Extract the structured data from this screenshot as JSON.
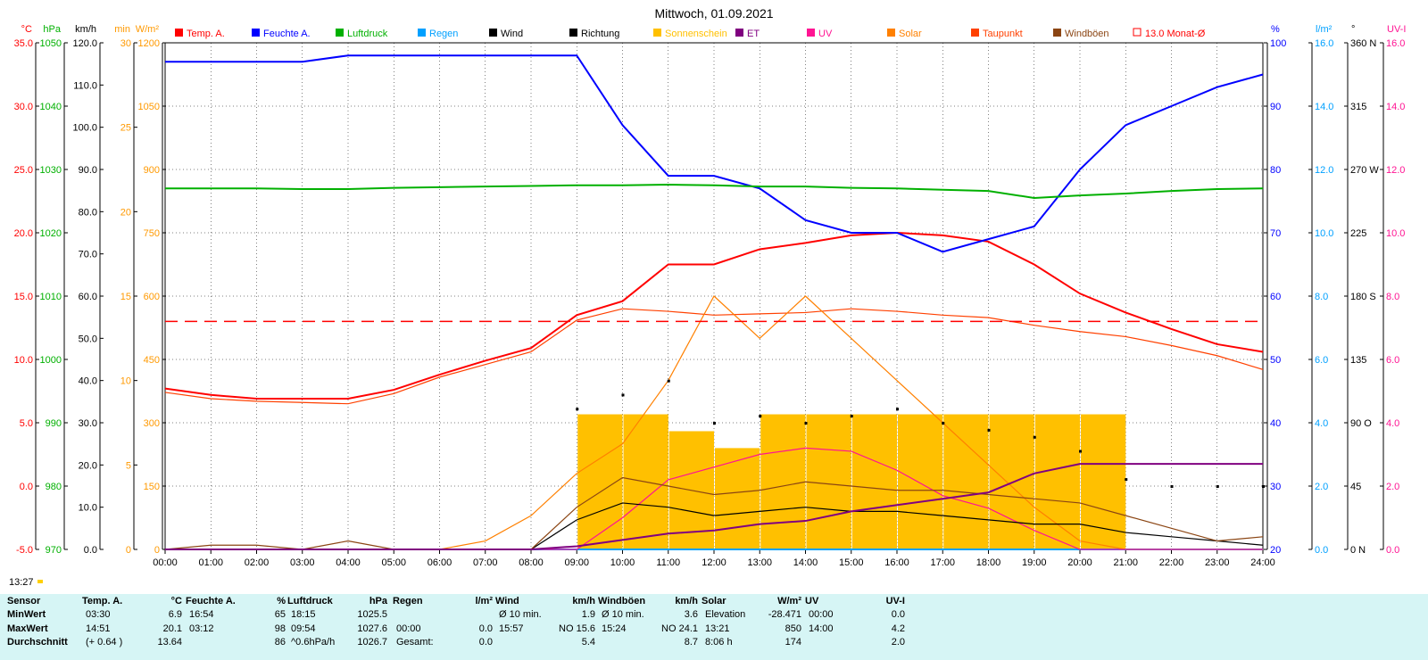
{
  "title": "Mittwoch, 01.09.2021",
  "time_marker": "13:27",
  "legend": [
    {
      "label": "Temp. A.",
      "color": "#ff0000",
      "type": "box"
    },
    {
      "label": "Feuchte A.",
      "color": "#0000ff",
      "type": "box"
    },
    {
      "label": "Luftdruck",
      "color": "#00b000",
      "type": "box"
    },
    {
      "label": "Regen",
      "color": "#00a0ff",
      "type": "box"
    },
    {
      "label": "Wind",
      "color": "#000000",
      "type": "box"
    },
    {
      "label": "Richtung",
      "color": "#000000",
      "type": "box"
    },
    {
      "label": "Sonnenschein",
      "color": "#ffc000",
      "type": "box"
    },
    {
      "label": "ET",
      "color": "#800080",
      "type": "box"
    },
    {
      "label": "UV",
      "color": "#ff1493",
      "type": "box"
    },
    {
      "label": "Solar",
      "color": "#ff8000",
      "type": "box"
    },
    {
      "label": "Taupunkt",
      "color": "#ff4000",
      "type": "box"
    },
    {
      "label": "Windböen",
      "color": "#8b4513",
      "type": "box"
    },
    {
      "label": "13.0 Monat-Ø",
      "color": "#ff0000",
      "type": "outline"
    }
  ],
  "axes_left": [
    {
      "unit": "°C",
      "color": "#ff0000",
      "labels": [
        "35.0",
        "30.0",
        "25.0",
        "20.0",
        "15.0",
        "10.0",
        "5.0",
        "0.0",
        "-5.0"
      ]
    },
    {
      "unit": "hPa",
      "color": "#00b000",
      "labels": [
        "1050",
        "1040",
        "1030",
        "1020",
        "1010",
        "1000",
        "990",
        "980",
        "970"
      ]
    },
    {
      "unit": "km/h",
      "color": "#000000",
      "labels": [
        "120.0",
        "110.0",
        "100.0",
        "90.0",
        "80.0",
        "70.0",
        "60.0",
        "50.0",
        "40.0",
        "30.0",
        "20.0",
        "10.0",
        "0.0"
      ]
    },
    {
      "unit": "min",
      "color": "#ff9900",
      "labels": [
        "30",
        "25",
        "20",
        "15",
        "10",
        "5",
        "0"
      ]
    },
    {
      "unit": "W/m²",
      "color": "#ff9900",
      "labels": [
        "1200",
        "1050",
        "900",
        "750",
        "600",
        "450",
        "300",
        "150",
        "0"
      ]
    }
  ],
  "axes_right": [
    {
      "unit": "%",
      "color": "#0000ff",
      "labels": [
        "100",
        "90",
        "80",
        "70",
        "60",
        "50",
        "40",
        "30",
        "20"
      ]
    },
    {
      "unit": "l/m²",
      "color": "#00a0ff",
      "labels": [
        "16.0",
        "14.0",
        "12.0",
        "10.0",
        "8.0",
        "6.0",
        "4.0",
        "2.0",
        "0.0"
      ]
    },
    {
      "unit": "°",
      "color": "#000000",
      "labels": [
        "360 N",
        "315",
        "270 W",
        "225",
        "180 S",
        "135",
        "90 O",
        "45",
        "0 N"
      ]
    },
    {
      "unit": "UV-I",
      "color": "#ff1493",
      "labels": [
        "16.0",
        "14.0",
        "12.0",
        "10.0",
        "8.0",
        "6.0",
        "4.0",
        "2.0",
        "0.0"
      ]
    }
  ],
  "x_labels": [
    "00:00",
    "01:00",
    "02:00",
    "03:00",
    "04:00",
    "05:00",
    "06:00",
    "07:00",
    "08:00",
    "09:00",
    "10:00",
    "11:00",
    "12:00",
    "13:00",
    "14:00",
    "15:00",
    "16:00",
    "17:00",
    "18:00",
    "19:00",
    "20:00",
    "21:00",
    "22:00",
    "23:00",
    "24:00"
  ],
  "chart_data": {
    "type": "line",
    "x": [
      "00:00",
      "01:00",
      "02:00",
      "03:00",
      "04:00",
      "05:00",
      "06:00",
      "07:00",
      "08:00",
      "09:00",
      "10:00",
      "11:00",
      "12:00",
      "13:00",
      "14:00",
      "15:00",
      "16:00",
      "17:00",
      "18:00",
      "19:00",
      "20:00",
      "21:00",
      "22:00",
      "23:00",
      "24:00"
    ],
    "series": [
      {
        "name": "Temp. A.",
        "color": "#ff0000",
        "axis": "°C",
        "values": [
          7.7,
          7.2,
          6.9,
          6.9,
          6.9,
          7.6,
          8.8,
          9.9,
          10.9,
          13.5,
          14.6,
          17.5,
          17.5,
          18.7,
          19.2,
          19.8,
          20.0,
          19.8,
          19.3,
          17.5,
          15.2,
          13.7,
          12.4,
          11.2,
          10.6
        ]
      },
      {
        "name": "Taupunkt",
        "color": "#ff4000",
        "axis": "°C",
        "values": [
          7.4,
          6.9,
          6.7,
          6.6,
          6.5,
          7.3,
          8.6,
          9.6,
          10.6,
          13.1,
          14.0,
          13.8,
          13.5,
          13.6,
          13.7,
          14.0,
          13.8,
          13.5,
          13.3,
          12.7,
          12.2,
          11.8,
          11.1,
          10.3,
          9.2
        ]
      },
      {
        "name": "Feuchte A.",
        "color": "#0000ff",
        "axis": "%",
        "values": [
          97,
          97,
          97,
          97,
          98,
          98,
          98,
          98,
          98,
          98,
          87,
          79,
          79,
          77,
          72,
          70,
          70,
          67,
          69,
          71,
          80,
          87,
          90,
          93,
          95
        ]
      },
      {
        "name": "Luftdruck",
        "color": "#00b000",
        "axis": "hPa",
        "values": [
          1027.0,
          1027.0,
          1027.0,
          1026.9,
          1026.9,
          1027.1,
          1027.2,
          1027.3,
          1027.4,
          1027.5,
          1027.5,
          1027.6,
          1027.5,
          1027.3,
          1027.3,
          1027.1,
          1027.0,
          1026.8,
          1026.6,
          1025.5,
          1025.9,
          1026.2,
          1026.6,
          1026.9,
          1027.0
        ]
      },
      {
        "name": "Solar",
        "color": "#ff8000",
        "axis": "W/m²",
        "values": [
          0,
          0,
          0,
          0,
          0,
          0,
          0,
          20,
          80,
          180,
          250,
          400,
          600,
          500,
          600,
          500,
          400,
          300,
          200,
          100,
          20,
          0,
          0,
          0,
          0
        ]
      },
      {
        "name": "UV",
        "color": "#ff1493",
        "axis": "UV-I",
        "values": [
          0,
          0,
          0,
          0,
          0,
          0,
          0,
          0,
          0,
          0,
          1.0,
          2.2,
          2.6,
          3.0,
          3.2,
          3.1,
          2.5,
          1.7,
          1.3,
          0.6,
          0.0,
          0,
          0,
          0,
          0
        ]
      },
      {
        "name": "Wind",
        "color": "#000000",
        "axis": "km/h",
        "values": [
          0,
          0,
          0,
          0,
          0,
          0,
          0,
          0,
          0,
          7,
          11,
          10,
          8,
          9,
          10,
          9,
          9,
          8,
          7,
          6,
          6,
          4,
          3,
          2,
          1
        ]
      },
      {
        "name": "Windböen",
        "color": "#8b4513",
        "axis": "km/h",
        "values": [
          0,
          1,
          1,
          0,
          2,
          0,
          0,
          0,
          0,
          10,
          17,
          15,
          13,
          14,
          16,
          15,
          14,
          14,
          13,
          12,
          11,
          8,
          5,
          2,
          3
        ]
      },
      {
        "name": "ET",
        "color": "#800080",
        "axis": "l/m²",
        "values": [
          0,
          0,
          0,
          0,
          0,
          0,
          0,
          0,
          0.0,
          0.1,
          0.3,
          0.5,
          0.6,
          0.8,
          0.9,
          1.2,
          1.4,
          1.6,
          1.8,
          2.4,
          2.7,
          2.7,
          2.7,
          2.7,
          2.7
        ]
      },
      {
        "name": "13.0 Monat-Ø",
        "color": "#ff0000",
        "axis": "°C",
        "values": [
          13.0,
          13.0,
          13.0,
          13.0,
          13.0,
          13.0,
          13.0,
          13.0,
          13.0,
          13.0,
          13.0,
          13.0,
          13.0,
          13.0,
          13.0,
          13.0,
          13.0,
          13.0,
          13.0,
          13.0,
          13.0,
          13.0,
          13.0,
          13.0,
          13.0
        ]
      }
    ],
    "sunshine_minutes": [
      0,
      0,
      0,
      0,
      0,
      0,
      0,
      0,
      0,
      8,
      8,
      7,
      6,
      8,
      8,
      8,
      8,
      8,
      8,
      8,
      8,
      0,
      0,
      0,
      0
    ],
    "wind_direction_deg": [
      0,
      0,
      0,
      0,
      0,
      0,
      0,
      0,
      0,
      100,
      110,
      120,
      90,
      95,
      90,
      95,
      100,
      90,
      85,
      80,
      70,
      50,
      45,
      45,
      45
    ],
    "regen_l_m2": [
      0,
      0,
      0,
      0,
      0,
      0,
      0,
      0,
      0,
      0,
      0,
      0,
      0,
      0,
      0,
      0,
      0,
      0,
      0,
      0,
      0,
      0,
      0,
      0,
      0
    ]
  },
  "stats": {
    "headers": [
      {
        "sensor": "Temp. A.",
        "unit": "°C"
      },
      {
        "sensor": "Feuchte A.",
        "unit": "%"
      },
      {
        "sensor": "Luftdruck",
        "unit": "hPa"
      },
      {
        "sensor": "Regen",
        "unit": "l/m²"
      },
      {
        "sensor": "Wind",
        "unit": "km/h"
      },
      {
        "sensor": "Windböen",
        "unit": "km/h"
      },
      {
        "sensor": "Solar",
        "unit": "W/m²"
      },
      {
        "sensor": "UV",
        "unit": "UV-I"
      }
    ],
    "row_labels": [
      "Sensor",
      "MinWert",
      "MaxWert",
      "Durchschnitt"
    ],
    "rows": [
      [
        [
          "03:30",
          "6.9"
        ],
        [
          "16:54",
          "65"
        ],
        [
          "18:15",
          "1025.5"
        ],
        [
          "",
          ""
        ],
        [
          "Ø 10 min.",
          "1.9"
        ],
        [
          "Ø 10 min.",
          "3.6"
        ],
        [
          "Elevation",
          "-28.471"
        ],
        [
          "00:00",
          "0.0"
        ]
      ],
      [
        [
          "14:51",
          "20.1"
        ],
        [
          "03:12",
          "98"
        ],
        [
          "09:54",
          "1027.6"
        ],
        [
          "00:00",
          "0.0"
        ],
        [
          "15:57",
          "NO 15.6"
        ],
        [
          "15:24",
          "NO 24.1"
        ],
        [
          "13:21",
          "850"
        ],
        [
          "14:00",
          "4.2"
        ]
      ],
      [
        [
          "(+ 0.64 )",
          "13.64"
        ],
        [
          "",
          "86"
        ],
        [
          "^0.6hPa/h",
          "1026.7"
        ],
        [
          "Gesamt:",
          "0.0"
        ],
        [
          "",
          "5.4"
        ],
        [
          "",
          "8.7"
        ],
        [
          "8:06 h",
          "174"
        ],
        [
          "",
          "2.0"
        ]
      ]
    ]
  }
}
